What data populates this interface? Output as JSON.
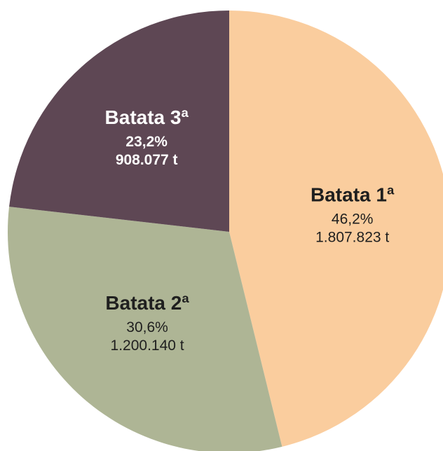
{
  "chart_data": {
    "type": "pie",
    "title": "",
    "start_angle_deg": 0,
    "direction": "clockwise",
    "slices": [
      {
        "label": "Batata 1ª",
        "value": 1807823,
        "percent_text": "46,2%",
        "value_text": "1.807.823 t",
        "color": "#FACD9E",
        "text_color": "#1f1f1f",
        "bold_sub": false
      },
      {
        "label": "Batata 2ª",
        "value": 1200140,
        "percent_text": "30,6%",
        "value_text": "1.200.140 t",
        "color": "#AEB595",
        "text_color": "#1f1f1f",
        "bold_sub": false
      },
      {
        "label": "Batata 3ª",
        "value": 908077,
        "percent_text": "23,2%",
        "value_text": "908.077 t",
        "color": "#5E4754",
        "text_color": "#ffffff",
        "bold_sub": true
      }
    ]
  }
}
